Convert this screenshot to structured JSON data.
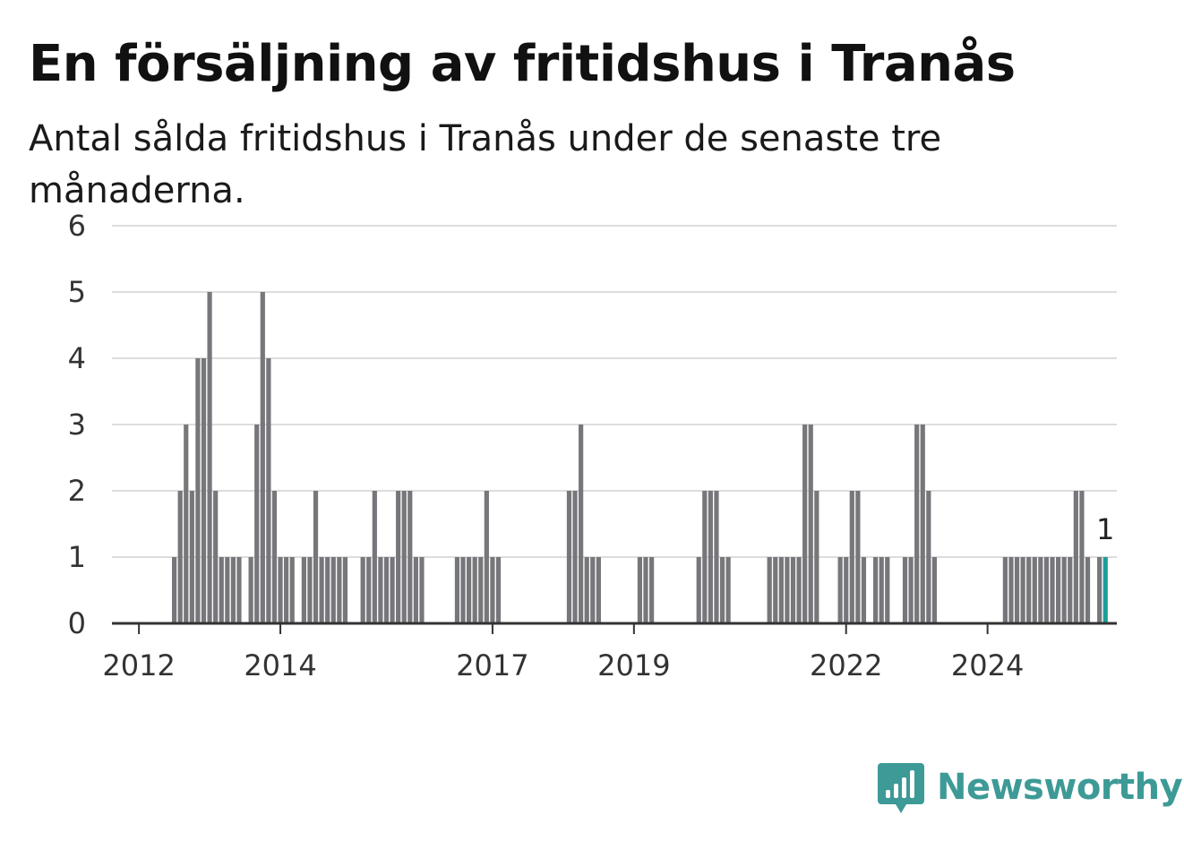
{
  "title": "En försäljning av fritidshus i Tranås",
  "subtitle": "Antal sålda fritidshus i Tranås under de senaste tre månaderna.",
  "logo": {
    "text": "Newsworthy",
    "icon": "newsworthy-bar-chart-icon",
    "color": "#3d9a96"
  },
  "chart_data": {
    "type": "bar",
    "title": "En försäljning av fritidshus i Tranås",
    "subtitle": "Antal sålda fritidshus i Tranås under de senaste tre månaderna.",
    "xlabel": "",
    "ylabel": "",
    "ylim": [
      0,
      6
    ],
    "yticks": [
      0,
      1,
      2,
      3,
      4,
      5,
      6
    ],
    "xticks": [
      "2012",
      "2014",
      "2017",
      "2019",
      "2022",
      "2024"
    ],
    "grid": true,
    "bar_color": "#76767b",
    "highlight_color": "#1a9e98",
    "highlight_label": "1",
    "start": "2011-09",
    "series": [
      {
        "values": [
          0,
          0,
          0,
          0,
          0,
          0,
          0,
          0,
          0,
          0,
          1,
          2,
          3,
          2,
          4,
          4,
          5,
          2,
          1,
          1,
          1,
          1,
          0,
          1,
          3,
          5,
          4,
          2,
          1,
          1,
          1,
          0,
          1,
          1,
          2,
          1,
          1,
          1,
          1,
          1,
          0,
          0,
          1,
          1,
          2,
          1,
          1,
          1,
          2,
          2,
          2,
          1,
          1,
          0,
          0,
          0,
          0,
          0,
          1,
          1,
          1,
          1,
          1,
          2,
          1,
          1,
          0,
          0,
          0,
          0,
          0,
          0,
          0,
          0,
          0,
          0,
          0,
          2,
          2,
          3,
          1,
          1,
          1,
          0,
          0,
          0,
          0,
          0,
          0,
          1,
          1,
          1,
          0,
          0,
          0,
          0,
          0,
          0,
          0,
          1,
          2,
          2,
          2,
          1,
          1,
          0,
          0,
          0,
          0,
          0,
          0,
          1,
          1,
          1,
          1,
          1,
          1,
          3,
          3,
          2,
          0,
          0,
          0,
          1,
          1,
          2,
          2,
          1,
          0,
          1,
          1,
          1,
          0,
          0,
          1,
          1,
          3,
          3,
          2,
          1,
          0,
          0,
          0,
          0,
          0,
          0,
          0,
          0,
          0,
          0,
          0,
          1,
          1,
          1,
          1,
          1,
          1,
          1,
          1,
          1,
          1,
          1,
          1,
          2,
          2,
          1,
          0,
          1,
          1
        ]
      }
    ]
  }
}
